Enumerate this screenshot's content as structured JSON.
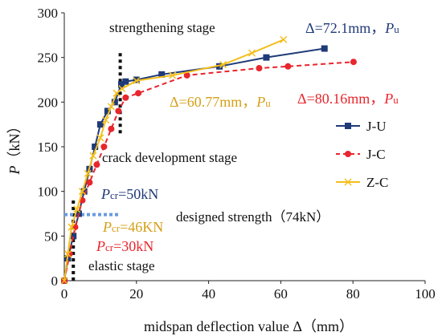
{
  "chart_data": {
    "type": "line",
    "xlabel": "midspan deflection value Δ（mm）",
    "ylabel": "P（kN）",
    "ylabel_parts": {
      "var": "P",
      "unit": "（kN）"
    },
    "xlim": [
      0,
      100
    ],
    "ylim": [
      0,
      300
    ],
    "x_ticks": [
      0,
      20,
      40,
      60,
      80,
      100
    ],
    "y_ticks": [
      0,
      50,
      100,
      150,
      200,
      250,
      300
    ],
    "grid": false,
    "legend_position": "right",
    "series": [
      {
        "name": "J-U",
        "color": "#1f3a78",
        "dash": "solid",
        "marker": "square",
        "x": [
          0,
          1,
          2.5,
          4,
          5.5,
          7,
          8.5,
          10,
          12,
          14,
          15.8,
          17,
          20,
          27,
          43,
          56,
          72.1
        ],
        "y": [
          0,
          25,
          50,
          75,
          100,
          125,
          150,
          175,
          190,
          200,
          220,
          223,
          225,
          231,
          240,
          250,
          260
        ]
      },
      {
        "name": "J-C",
        "color": "#e8262d",
        "dash": "dashed",
        "marker": "circle",
        "x": [
          0,
          1.5,
          3,
          5,
          7,
          9,
          11,
          13,
          15,
          17,
          20.5,
          34,
          54,
          62,
          80.16
        ],
        "y": [
          0,
          30,
          60,
          90,
          110,
          130,
          150,
          170,
          190,
          205,
          210,
          230,
          238,
          240,
          245
        ]
      },
      {
        "name": "Z-C",
        "color": "#f3bf1e",
        "dash": "solid",
        "marker": "cross",
        "x": [
          0,
          1,
          2,
          3.5,
          5,
          6.5,
          8,
          10,
          11.5,
          13,
          14.5,
          16,
          20,
          30,
          44,
          52,
          60.77
        ],
        "y": [
          0,
          30,
          60,
          80,
          100,
          120,
          140,
          160,
          180,
          195,
          210,
          215,
          224,
          230,
          242,
          255,
          270
        ]
      }
    ],
    "reference_lines": [
      {
        "orientation": "vertical",
        "x": 2.5,
        "y": [
          0,
          90
        ],
        "color": "#111111"
      },
      {
        "orientation": "vertical",
        "x": 15.5,
        "y": [
          165,
          255
        ],
        "color": "#111111"
      },
      {
        "orientation": "horizontal",
        "y": 74,
        "x": [
          0,
          15
        ],
        "color": "#6a9ae0"
      }
    ],
    "annotations": [
      {
        "id": "strengthening",
        "text": "strengthening stage",
        "color": "#111111"
      },
      {
        "id": "crack",
        "text": "crack development stage",
        "color": "#111111"
      },
      {
        "id": "elastic",
        "text": "elastic stage",
        "color": "#111111"
      },
      {
        "id": "designed",
        "text": "designed strength（74kN）",
        "color": "#111111"
      },
      {
        "id": "ju_pu",
        "prefix": "Δ=72.1mm，",
        "var": "P",
        "sub": "u",
        "color": "#1f3a78"
      },
      {
        "id": "zc_pu",
        "prefix": "Δ=60.77mm，",
        "var": "P",
        "sub": "u",
        "color": "#d4a017"
      },
      {
        "id": "jc_pu",
        "prefix": "Δ=80.16mm，",
        "var": "P",
        "sub": "u",
        "color": "#e8262d"
      },
      {
        "id": "ju_pcr",
        "var": "P",
        "sub": "cr",
        "suffix": "=50kN",
        "color": "#1f3a78"
      },
      {
        "id": "zc_pcr",
        "var": "P",
        "sub": "cr",
        "suffix": "=46KN",
        "color": "#d4a017"
      },
      {
        "id": "jc_pcr",
        "var": "P",
        "sub": "cr",
        "suffix": "=30kN",
        "color": "#e8262d"
      }
    ]
  }
}
